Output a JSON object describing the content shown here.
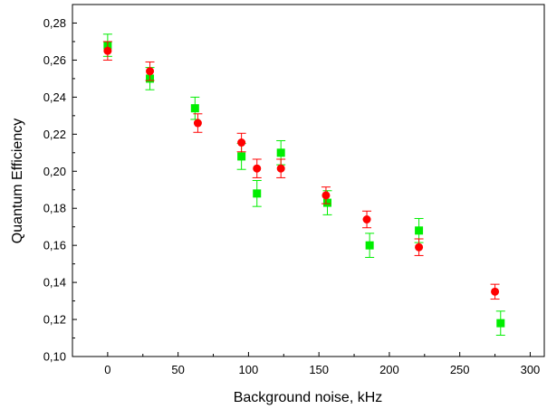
{
  "chart_data": {
    "type": "scatter",
    "title": "",
    "xlabel": "Background noise, kHz",
    "ylabel": "Quantum Efficiency",
    "xlim": [
      -25,
      310
    ],
    "ylim": [
      0.1,
      0.29
    ],
    "x_ticks": [
      0,
      50,
      100,
      150,
      200,
      250,
      300
    ],
    "x_tick_labels": [
      "0",
      "50",
      "100",
      "150",
      "200",
      "250",
      "300"
    ],
    "y_ticks": [
      0.1,
      0.12,
      0.14,
      0.16,
      0.18,
      0.2,
      0.22,
      0.24,
      0.26,
      0.28
    ],
    "y_tick_labels": [
      "0,10",
      "0,12",
      "0,14",
      "0,16",
      "0,18",
      "0,20",
      "0,22",
      "0,24",
      "0,26",
      "0,28"
    ],
    "grid": false,
    "legend": "none",
    "series": [
      {
        "marker": "circle",
        "color": "#ff0000",
        "points": [
          {
            "x": 0,
            "y": 0.265,
            "err": 0.005
          },
          {
            "x": 30,
            "y": 0.254,
            "err": 0.005
          },
          {
            "x": 64,
            "y": 0.226,
            "err": 0.005
          },
          {
            "x": 95,
            "y": 0.2155,
            "err": 0.005
          },
          {
            "x": 106,
            "y": 0.2015,
            "err": 0.005
          },
          {
            "x": 123,
            "y": 0.2015,
            "err": 0.005
          },
          {
            "x": 155,
            "y": 0.187,
            "err": 0.0045
          },
          {
            "x": 184,
            "y": 0.174,
            "err": 0.0045
          },
          {
            "x": 221,
            "y": 0.159,
            "err": 0.0045
          },
          {
            "x": 275,
            "y": 0.135,
            "err": 0.004
          }
        ]
      },
      {
        "marker": "square",
        "color": "#00ee00",
        "points": [
          {
            "x": 0,
            "y": 0.268,
            "err": 0.006
          },
          {
            "x": 30,
            "y": 0.25,
            "err": 0.006
          },
          {
            "x": 62,
            "y": 0.234,
            "err": 0.006
          },
          {
            "x": 95,
            "y": 0.208,
            "err": 0.007
          },
          {
            "x": 106,
            "y": 0.188,
            "err": 0.007
          },
          {
            "x": 123,
            "y": 0.21,
            "err": 0.0065
          },
          {
            "x": 156,
            "y": 0.183,
            "err": 0.0065
          },
          {
            "x": 186,
            "y": 0.16,
            "err": 0.0065
          },
          {
            "x": 221,
            "y": 0.168,
            "err": 0.0065
          },
          {
            "x": 279,
            "y": 0.118,
            "err": 0.0065
          }
        ]
      }
    ]
  }
}
